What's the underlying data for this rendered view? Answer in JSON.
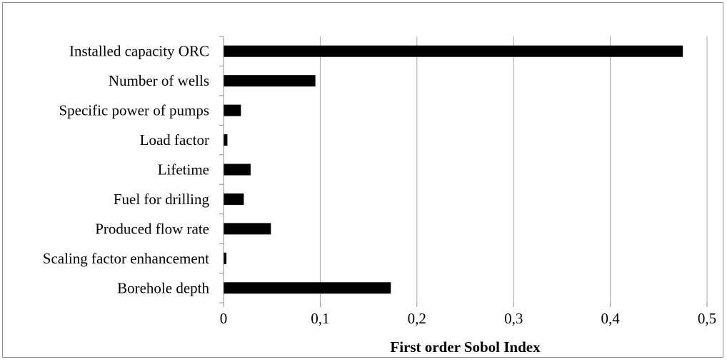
{
  "chart_data": {
    "type": "bar",
    "orientation": "horizontal",
    "title": "",
    "xlabel": "First order Sobol Index",
    "ylabel": "",
    "categories": [
      "Installed capacity ORC",
      "Number of wells",
      "Specific power of pumps",
      "Load factor",
      "Lifetime",
      "Fuel for drilling",
      "Produced flow rate",
      "Scaling factor enhancement",
      "Borehole depth"
    ],
    "values": [
      0.475,
      0.095,
      0.018,
      0.004,
      0.028,
      0.021,
      0.049,
      0.003,
      0.173
    ],
    "xlim": [
      0,
      0.5
    ],
    "x_ticks": [
      0,
      0.1,
      0.2,
      0.3,
      0.4,
      0.5
    ],
    "x_tick_labels": [
      "0",
      "0,1",
      "0,2",
      "0,3",
      "0,4",
      "0,5"
    ],
    "grid": "vertical",
    "legend": "none",
    "bar_color": "#000000",
    "grid_color": "#a6a6a6"
  }
}
